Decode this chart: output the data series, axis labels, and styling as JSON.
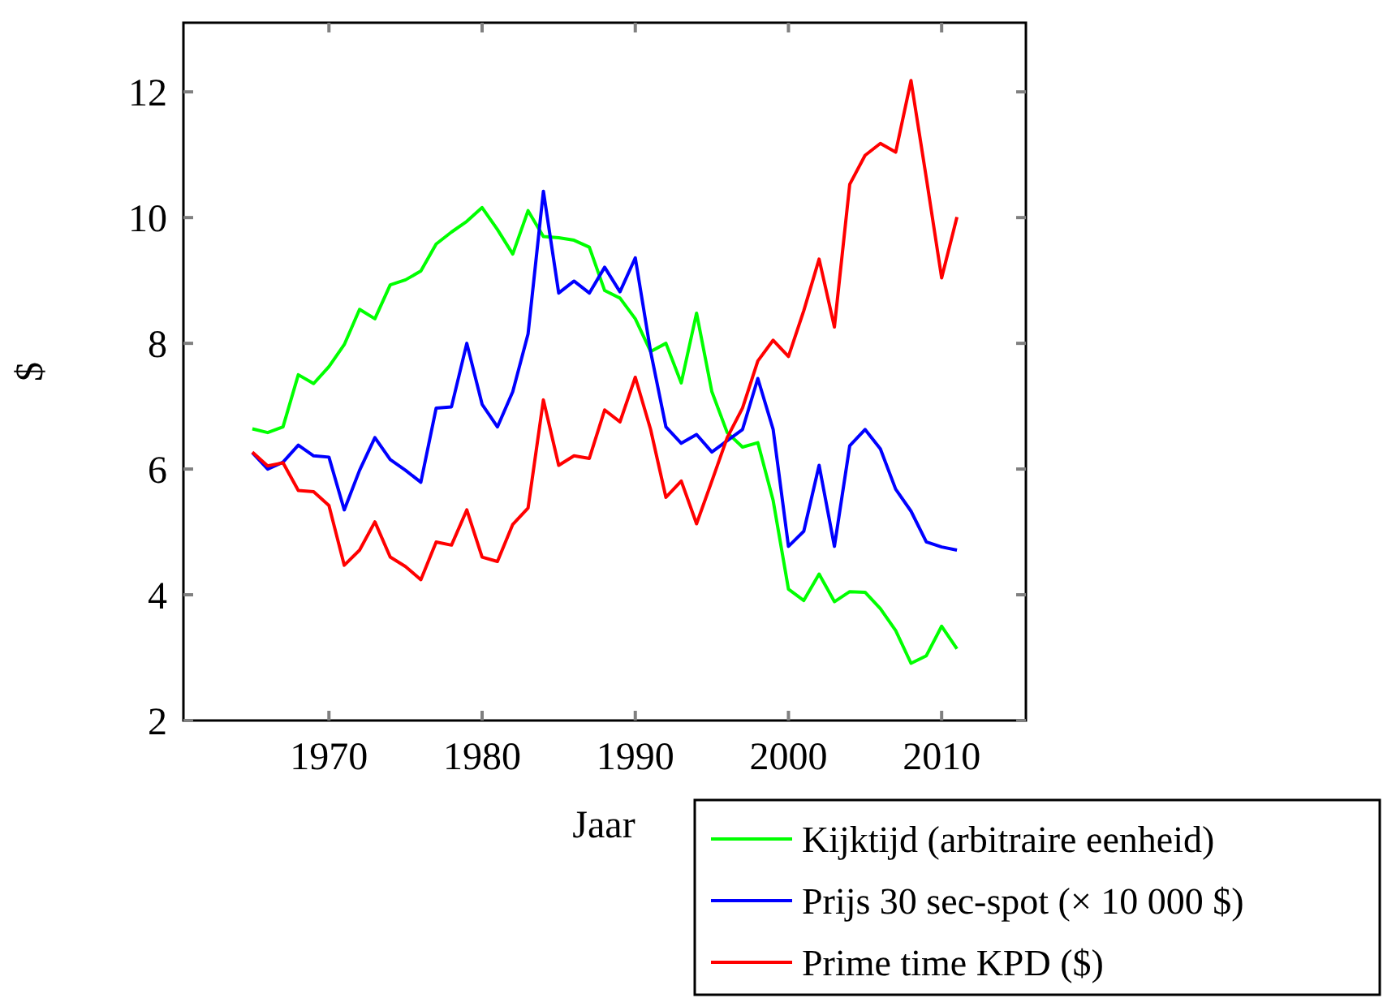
{
  "chart_data": {
    "type": "line",
    "xlabel": "Jaar",
    "ylabel": "$",
    "x": [
      1965,
      1966,
      1967,
      1968,
      1969,
      1970,
      1971,
      1972,
      1973,
      1974,
      1975,
      1976,
      1977,
      1978,
      1979,
      1980,
      1981,
      1982,
      1983,
      1984,
      1985,
      1986,
      1987,
      1988,
      1989,
      1990,
      1991,
      1992,
      1993,
      1994,
      1995,
      1996,
      1997,
      1998,
      1999,
      2000,
      2001,
      2002,
      2003,
      2004,
      2005,
      2006,
      2007,
      2008,
      2009,
      2010,
      2011
    ],
    "series": [
      {
        "name": "Kijktijd (arbitraire eenheid)",
        "color": "#00ff00",
        "values": [
          6.64,
          6.58,
          6.67,
          7.5,
          7.36,
          7.63,
          7.98,
          8.54,
          8.39,
          8.93,
          9.01,
          9.15,
          9.58,
          9.77,
          9.94,
          10.16,
          9.81,
          9.42,
          10.11,
          9.7,
          9.68,
          9.64,
          9.53,
          8.84,
          8.72,
          8.39,
          7.87,
          8.0,
          7.37,
          8.48,
          7.23,
          6.58,
          6.35,
          6.42,
          5.5,
          4.09,
          3.91,
          4.33,
          3.89,
          4.05,
          4.04,
          3.78,
          3.43,
          2.91,
          3.03,
          3.5,
          3.14
        ]
      },
      {
        "name": "Prijs 30 sec-spot (× 10 000 $)",
        "color": "#0000ff",
        "values": [
          6.26,
          6.0,
          6.11,
          6.38,
          6.21,
          6.19,
          5.35,
          5.98,
          6.5,
          6.15,
          5.98,
          5.79,
          6.97,
          6.99,
          8.0,
          7.03,
          6.67,
          7.23,
          8.15,
          10.42,
          8.8,
          8.99,
          8.8,
          9.21,
          8.82,
          9.36,
          7.87,
          6.67,
          6.41,
          6.55,
          6.27,
          6.45,
          6.63,
          7.44,
          6.63,
          4.77,
          5.01,
          6.06,
          4.77,
          6.37,
          6.63,
          6.32,
          5.68,
          5.33,
          4.84,
          4.76,
          4.71
        ]
      },
      {
        "name": "Prime time KPD ($)",
        "color": "#ff0000",
        "values": [
          6.27,
          6.05,
          6.1,
          5.66,
          5.64,
          5.42,
          4.47,
          4.71,
          5.16,
          4.6,
          4.45,
          4.24,
          4.84,
          4.79,
          5.35,
          4.6,
          4.53,
          5.12,
          5.38,
          7.1,
          6.06,
          6.21,
          6.17,
          6.94,
          6.75,
          7.46,
          6.63,
          5.55,
          5.81,
          5.13,
          5.81,
          6.5,
          6.97,
          7.72,
          8.05,
          7.79,
          8.52,
          9.34,
          8.26,
          10.53,
          10.99,
          11.18,
          11.04,
          12.18,
          10.63,
          9.04,
          10.01
        ]
      }
    ],
    "xlim": [
      1960.5,
      2015.5
    ],
    "ylim": [
      2,
      13.1
    ],
    "xticks": [
      1970,
      1980,
      1990,
      2000,
      2010
    ],
    "yticks": [
      2,
      4,
      6,
      8,
      10,
      12
    ],
    "grid": false,
    "legend": "bottom right",
    "line_style": "solid"
  }
}
